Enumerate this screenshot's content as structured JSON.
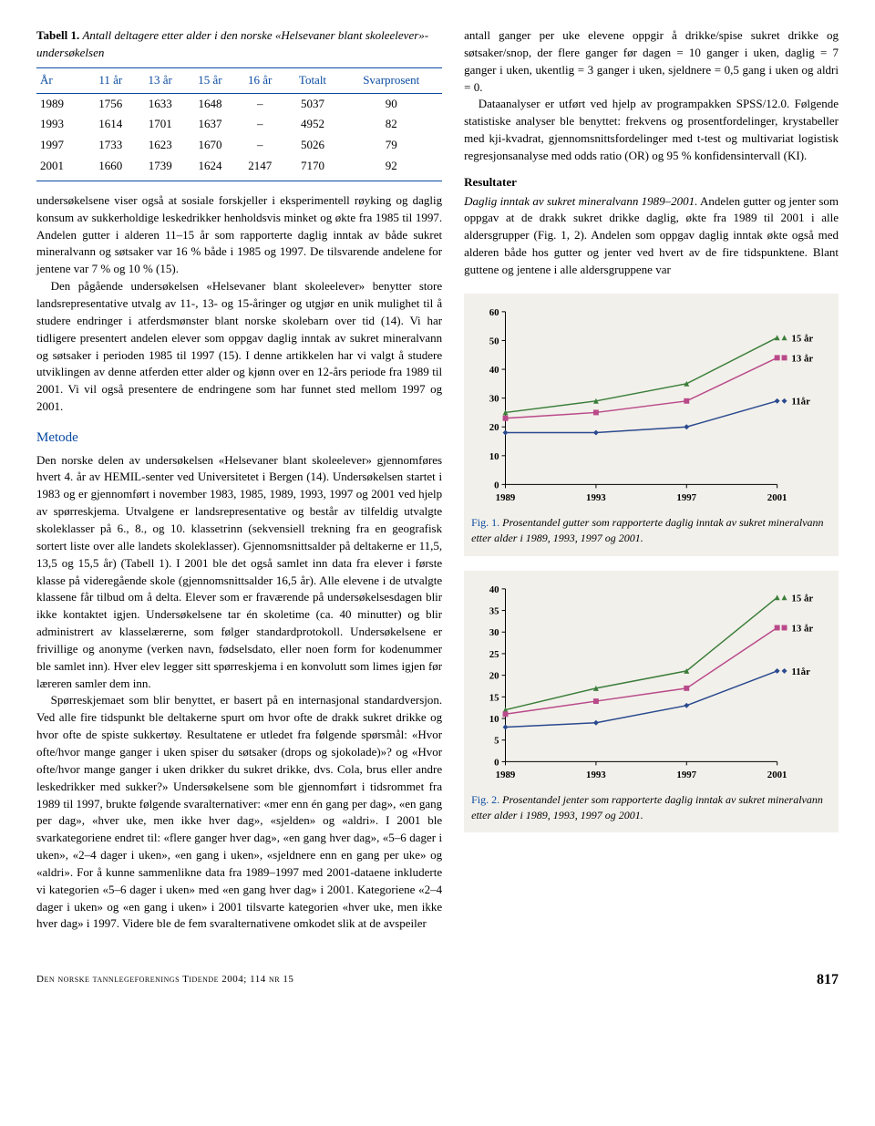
{
  "table": {
    "caption_lead": "Tabell 1.",
    "caption_rest": "Antall deltagere etter alder i den norske «Helsevaner blant skoleelever»-undersøkelsen",
    "headers": [
      "År",
      "11 år",
      "13 år",
      "15 år",
      "16 år",
      "Totalt",
      "Svarprosent"
    ],
    "rows": [
      [
        "1989",
        "1756",
        "1633",
        "1648",
        "–",
        "5037",
        "90"
      ],
      [
        "1993",
        "1614",
        "1701",
        "1637",
        "–",
        "4952",
        "82"
      ],
      [
        "1997",
        "1733",
        "1623",
        "1670",
        "–",
        "5026",
        "79"
      ],
      [
        "2001",
        "1660",
        "1739",
        "1624",
        "2147",
        "7170",
        "92"
      ]
    ]
  },
  "left": {
    "p1": "undersøkelsene viser også at sosiale forskjeller i eksperimentell røyking og daglig konsum av sukkerholdige leskedrikker henholdsvis minket og økte fra 1985 til 1997. Andelen gutter i alderen 11–15 år som rapporterte daglig inntak av både sukret mineralvann og søtsaker var 16 % både i 1985 og 1997. De tilsvarende andelene for jentene var 7 % og 10 % (15).",
    "p2": "Den pågående undersøkelsen «Helsevaner blant skoleelever» benytter store landsrepresentative utvalg av 11-, 13- og 15-åringer og utgjør en unik mulighet til å studere endringer i atferdsmønster blant norske skolebarn over tid (14). Vi har tidligere presentert andelen elever som oppgav daglig inntak av sukret mineralvann og søtsaker i perioden 1985 til 1997 (15). I denne artikkelen har vi valgt å studere utviklingen av denne atferden etter alder og kjønn over en 12-års periode fra 1989 til 2001. Vi vil også presentere de endringene som har funnet sted mellom 1997 og 2001.",
    "metode_head": "Metode",
    "p3": "Den norske delen av undersøkelsen «Helsevaner blant skoleelever» gjennomføres hvert 4. år av HEMIL-senter ved Universitetet i Bergen (14). Undersøkelsen startet i 1983 og er gjennomført i november 1983, 1985, 1989, 1993, 1997 og 2001 ved hjelp av spørreskjema. Utvalgene er landsrepresentative og består av tilfeldig utvalgte skoleklasser på 6., 8., og 10. klassetrinn (sekvensiell trekning fra en geografisk sortert liste over alle landets skoleklasser). Gjennomsnittsalder på deltakerne er 11,5, 13,5 og 15,5 år) (Tabell 1). I 2001 ble det også samlet inn data fra elever i første klasse på videregående skole (gjennomsnittsalder 16,5 år). Alle elevene i de utvalgte klassene får tilbud om å delta. Elever som er fraværende på undersøkelsesdagen blir ikke kontaktet igjen. Undersøkelsene tar én skoletime (ca. 40 minutter) og blir administrert av klasselærerne, som følger standardprotokoll. Undersøkelsene er frivillige og anonyme (verken navn, fødselsdato, eller noen form for kodenummer ble samlet inn). Hver elev legger sitt spørreskjema i en konvolutt som limes igjen før læreren samler dem inn.",
    "p4": "Spørreskjemaet som blir benyttet, er basert på en internasjonal standardversjon. Ved alle fire tidspunkt ble deltakerne spurt om hvor ofte de drakk sukret drikke og hvor ofte de spiste sukkertøy. Resultatene er utledet fra følgende spørsmål: «Hvor ofte/hvor mange ganger i uken spiser du søtsaker (drops og sjokolade)»? og «Hvor ofte/hvor mange ganger i uken drikker du sukret drikke, dvs. Cola, brus eller andre leskedrikker med sukker?» Undersøkelsene som ble gjennomført i tidsrommet fra 1989 til 1997, brukte følgende svaralternativer: «mer enn én gang per dag», «en gang per dag», «hver uke, men ikke hver dag», «sjelden» og «aldri». I 2001 ble svarkategoriene endret til: «flere ganger hver dag», «en gang hver dag», «5–6 dager i uken», «2–4 dager i uken», «en gang i uken», «sjeldnere enn en gang per uke» og «aldri». For å kunne sammenlikne data fra 1989–1997 med 2001-dataene inkluderte vi kategorien «5–6 dager i uken» med «en gang hver dag» i 2001. Kategoriene «2–4 dager i uken» og «en gang i uken» i 2001 tilsvarte kategorien «hver uke, men ikke hver dag» i 1997. Videre ble de fem svaralternativene omkodet slik at de avspeiler"
  },
  "right": {
    "p1": "antall ganger per uke elevene oppgir å drikke/spise sukret drikke og søtsaker/snop, der flere ganger før dagen = 10 ganger i uken, daglig = 7 ganger i uken, ukentlig = 3 ganger i uken, sjeldnere = 0,5 gang i uken og aldri = 0.",
    "p2": "Dataanalyser er utført ved hjelp av programpakken SPSS/12.0. Følgende statistiske analyser ble benyttet: frekvens og prosentfordelinger, krystabeller med kji-kvadrat, gjennomsnittsfordelinger med t-test og multivariat logistisk regresjonsanalyse med odds ratio (OR) og 95 % konfidensintervall (KI).",
    "res_head": "Resultater",
    "runin": "Daglig inntak av sukret mineralvann 1989–2001.",
    "p3": " Andelen gutter og jenter som oppgav at de drakk sukret drikke daglig, økte fra 1989 til 2001 i alle aldersgrupper (Fig. 1, 2). Andelen som oppgav daglig inntak økte også med alderen både hos gutter og jenter ved hvert av de fire tidspunktene. Blant guttene og jentene i alle aldersgruppene var"
  },
  "chart1": {
    "type": "line",
    "x_categories": [
      "1989",
      "1993",
      "1997",
      "2001"
    ],
    "series": [
      {
        "label": "15 år",
        "color": "#3b7e3b",
        "marker": "triangle",
        "values": [
          25,
          29,
          35,
          51
        ]
      },
      {
        "label": "13 år",
        "color": "#b94a8a",
        "marker": "square",
        "values": [
          23,
          25,
          29,
          44
        ]
      },
      {
        "label": "11år",
        "color": "#2a4a8f",
        "marker": "diamond",
        "values": [
          18,
          18,
          20,
          29
        ]
      }
    ],
    "ylim": [
      0,
      60
    ],
    "ytick_step": 10,
    "line_width": 1.5,
    "marker_size": 6,
    "bg": "#f2f0ea",
    "axis_color": "#000000",
    "label_fontsize": 11,
    "caption_lead": "Fig. 1.",
    "caption_rest": "Prosentandel gutter som rapporterte daglig inntak av sukret mineralvann etter alder i 1989, 1993, 1997 og 2001."
  },
  "chart2": {
    "type": "line",
    "x_categories": [
      "1989",
      "1993",
      "1997",
      "2001"
    ],
    "series": [
      {
        "label": "15 år",
        "color": "#3b7e3b",
        "marker": "triangle",
        "values": [
          12,
          17,
          21,
          38
        ]
      },
      {
        "label": "13 år",
        "color": "#b94a8a",
        "marker": "square",
        "values": [
          11,
          14,
          17,
          31
        ]
      },
      {
        "label": "11år",
        "color": "#2a4a8f",
        "marker": "diamond",
        "values": [
          8,
          9,
          13,
          21
        ]
      }
    ],
    "ylim": [
      0,
      40
    ],
    "ytick_step": 5,
    "line_width": 1.5,
    "marker_size": 6,
    "bg": "#f2f0ea",
    "axis_color": "#000000",
    "label_fontsize": 11,
    "caption_lead": "Fig. 2.",
    "caption_rest": "Prosentandel jenter som rapporterte daglig inntak av sukret mineralvann etter alder i 1989, 1993, 1997 og 2001."
  },
  "footer": {
    "journal": "Den norske tannlegeforenings Tidende 2004; 114 nr 15",
    "page": "817"
  }
}
